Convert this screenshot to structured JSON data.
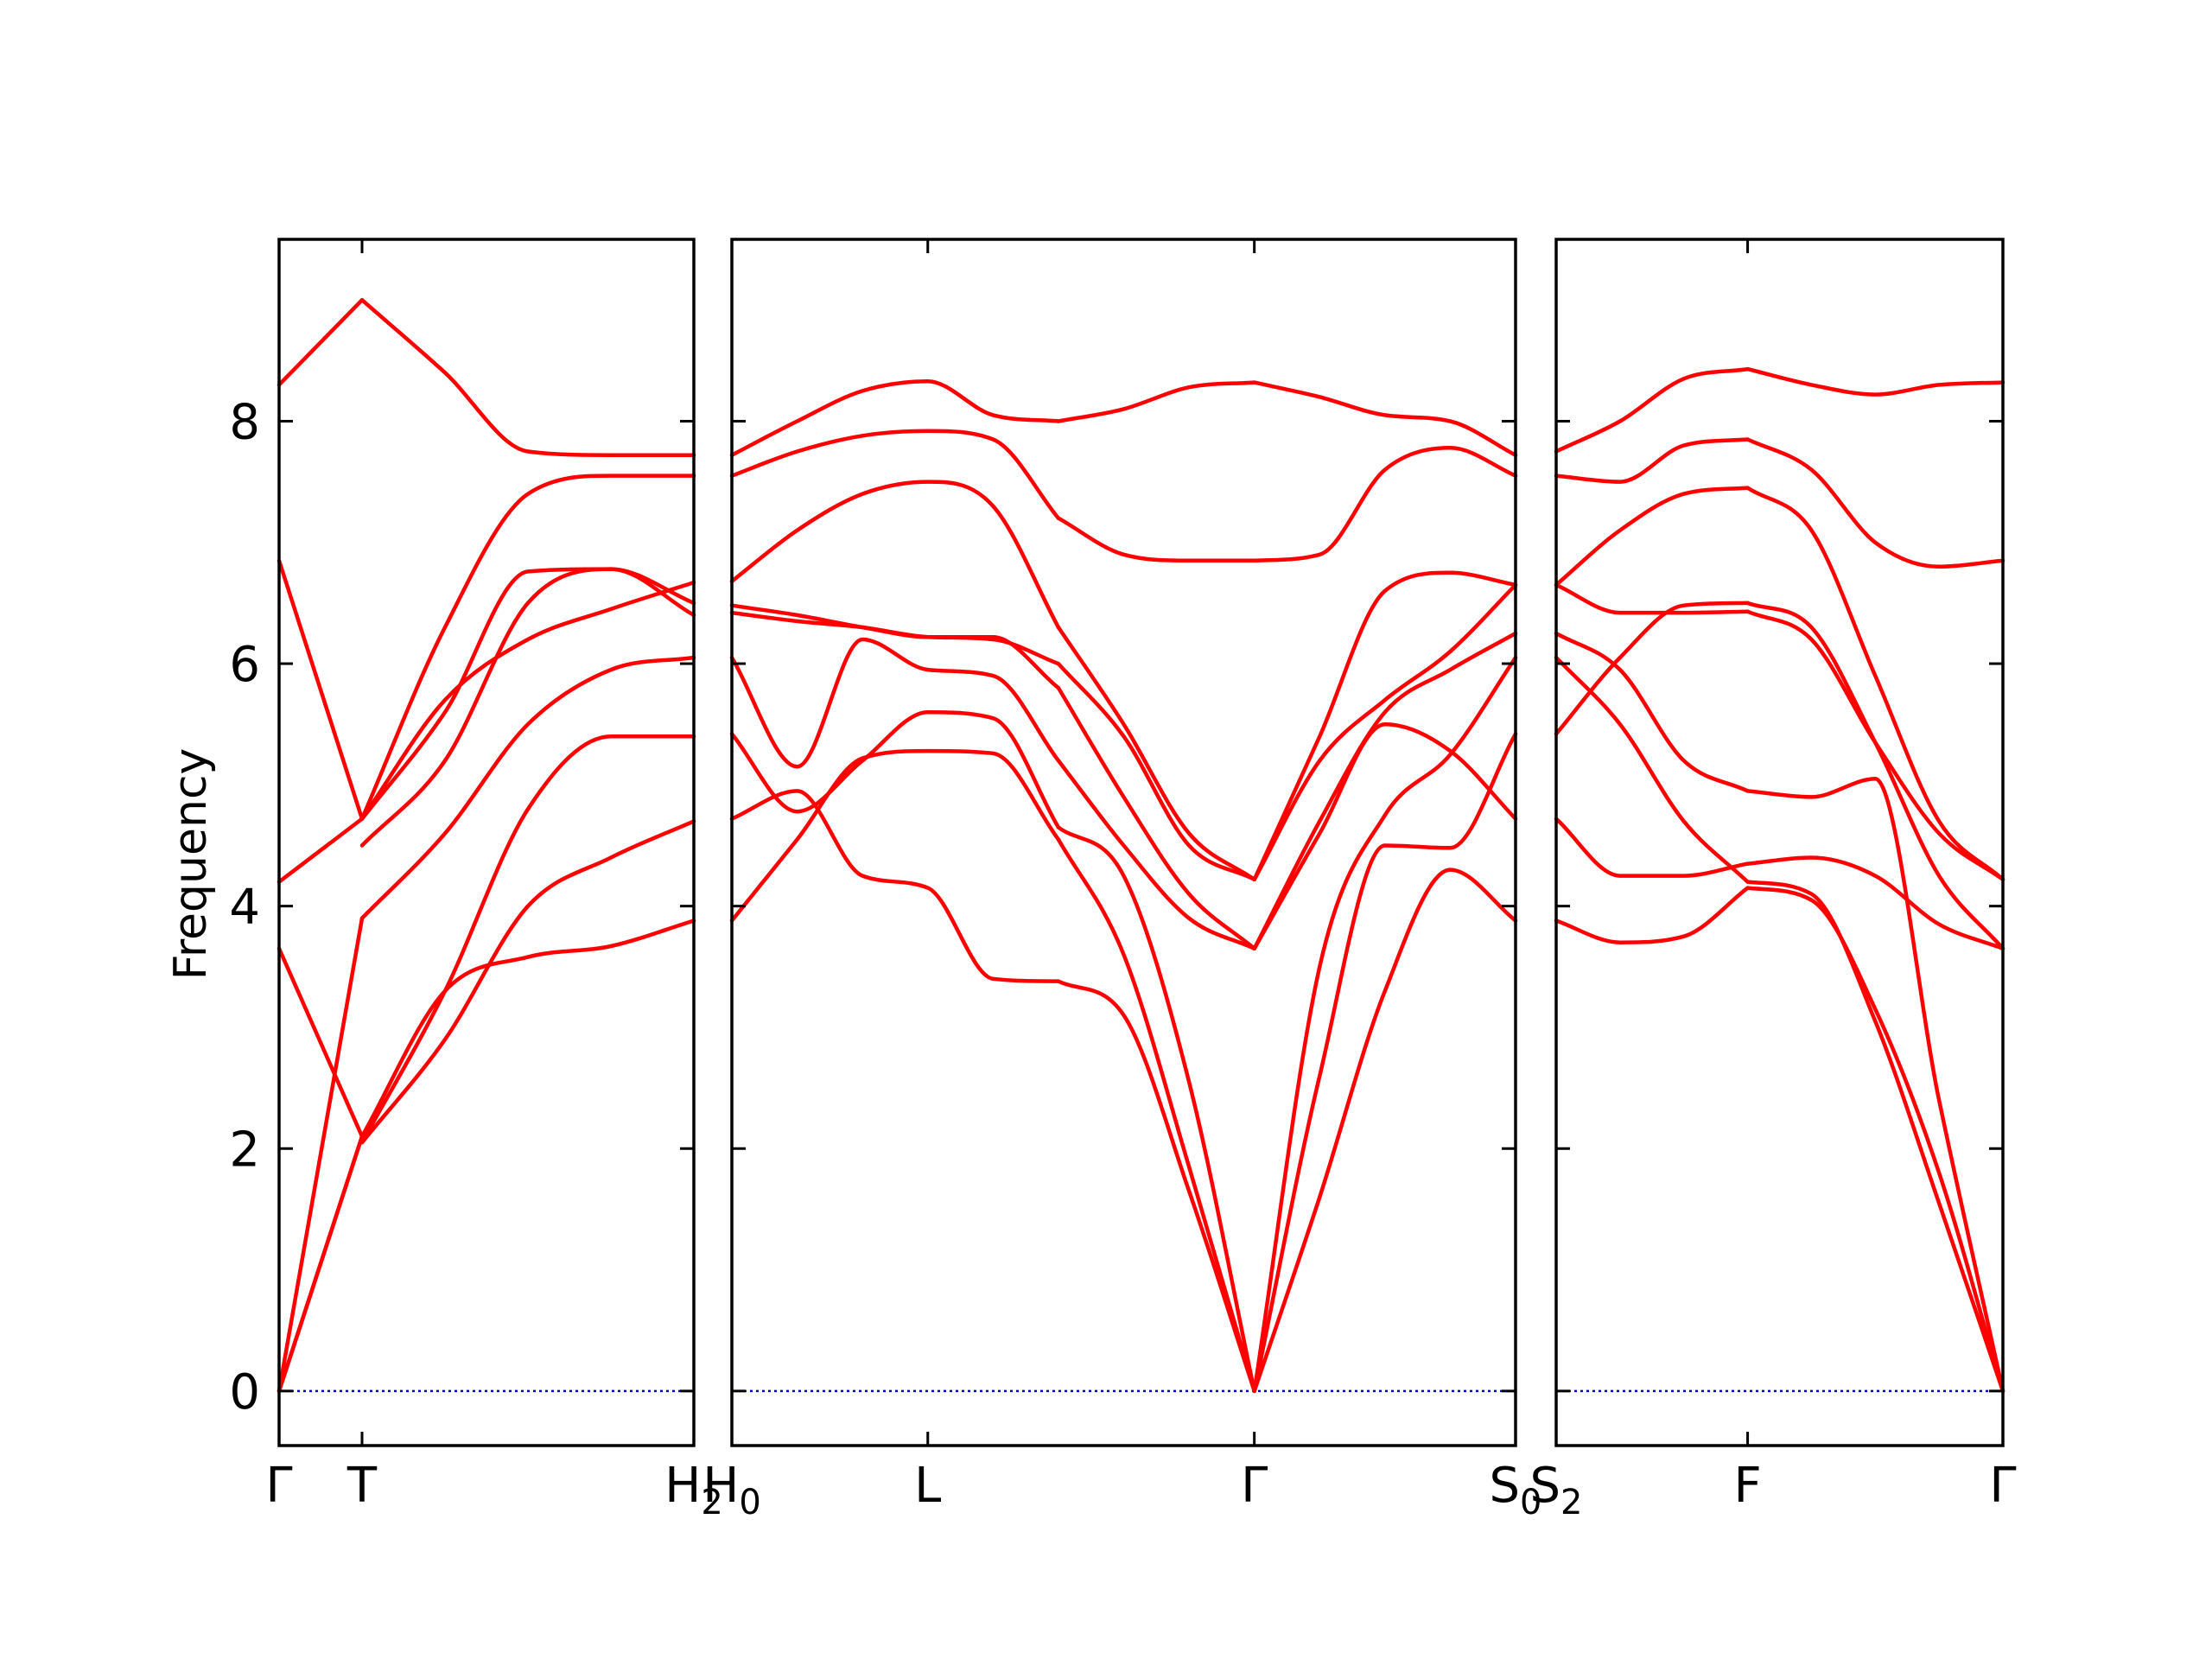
{
  "chart_data": {
    "type": "line",
    "title": "",
    "ylabel": "Frequency",
    "xlabel": "",
    "ylim": [
      -0.45,
      9.5
    ],
    "yticks": [
      "0",
      "2",
      "4",
      "6",
      "8"
    ],
    "grid": false,
    "legend": "none",
    "colors": {
      "bands": "#ff0000",
      "zero_line": "#0000cc",
      "axes": "#000000"
    },
    "panels": [
      {
        "segments": [
          {
            "x": [
              0,
              1
            ],
            "series": [
              {
                "values": [
                  0.0,
                  2.1
                ]
              },
              {
                "values": [
                  0.0,
                  2.1
                ]
              },
              {
                "values": [
                  0.0,
                  3.9
                ]
              },
              {
                "values": [
                  3.65,
                  2.1
                ]
              },
              {
                "values": [
                  4.2,
                  4.72
                ]
              },
              {
                "values": [
                  6.85,
                  4.72
                ]
              },
              {
                "values": [
                  8.3,
                  9.0
                ]
              }
            ]
          },
          {
            "x": [
              1,
              2,
              3,
              4,
              5
            ],
            "series": [
              {
                "values": [
                  2.05,
                  2.9,
                  4.0,
                  4.4,
                  4.7
                ]
              },
              {
                "values": [
                  2.05,
                  3.3,
                  4.8,
                  5.4,
                  5.4
                ]
              },
              {
                "values": [
                  2.1,
                  3.3,
                  3.58,
                  3.67,
                  3.88
                ]
              },
              {
                "values": [
                  3.9,
                  4.6,
                  5.5,
                  5.95,
                  6.05
                ]
              },
              {
                "values": [
                  4.5,
                  5.2,
                  6.5,
                  6.78,
                  6.4
                ]
              },
              {
                "values": [
                  4.72,
                  5.6,
                  6.76,
                  6.78,
                  6.5
                ]
              },
              {
                "values": [
                  4.72,
                  5.7,
                  6.2,
                  6.45,
                  6.67
                ]
              },
              {
                "values": [
                  9.0,
                  8.4,
                  7.75,
                  7.72,
                  7.72
                ]
              },
              {
                "values": [
                  4.72,
                  6.3,
                  7.4,
                  7.55,
                  7.55
                ]
              }
            ]
          }
        ],
        "ticks": [
          {
            "label": "Γ",
            "x": 0
          },
          {
            "label": "T",
            "x": 1
          },
          {
            "label": "H",
            "sub": "2",
            "x": 5
          }
        ]
      },
      {
        "segments": [
          {
            "x": [
              0,
              1,
              2,
              3,
              4,
              5
            ],
            "series": [
              {
                "values": [
                  3.88,
                  4.55,
                  5.22,
                  5.28,
                  5.26,
                  4.55
                ]
              },
              {
                "values": [
                  4.72,
                  4.95,
                  4.25,
                  4.15,
                  3.4,
                  3.38
                ]
              },
              {
                "values": [
                  5.42,
                  4.78,
                  5.2,
                  5.6,
                  5.55,
                  4.65
                ]
              },
              {
                "values": [
                  6.05,
                  5.15,
                  6.2,
                  5.95,
                  5.9,
                  5.2
                ]
              },
              {
                "values": [
                  6.48,
                  6.4,
                  6.3,
                  6.22,
                  6.22,
                  5.8
                ]
              },
              {
                "values": [
                  6.42,
                  6.35,
                  6.3,
                  6.22,
                  6.2,
                  6.0
                ]
              },
              {
                "values": [
                  6.68,
                  7.1,
                  7.4,
                  7.5,
                  7.3,
                  6.3
                ]
              },
              {
                "values": [
                  7.55,
                  7.75,
                  7.88,
                  7.92,
                  7.85,
                  7.2
                ]
              },
              {
                "values": [
                  7.72,
                  8.0,
                  8.25,
                  8.33,
                  8.05,
                  8.0
                ]
              }
            ]
          },
          {
            "x": [
              5,
              6,
              7,
              8
            ],
            "series": [
              {
                "values": [
                  4.55,
                  3.6,
                  1.85,
                  0.0
                ]
              },
              {
                "values": [
                  3.38,
                  3.1,
                  1.65,
                  0.0
                ]
              },
              {
                "values": [
                  4.65,
                  4.25,
                  2.55,
                  0.0
                ]
              },
              {
                "values": [
                  5.2,
                  4.5,
                  3.9,
                  3.65
                ]
              },
              {
                "values": [
                  5.8,
                  4.9,
                  4.1,
                  3.65
                ]
              },
              {
                "values": [
                  6.0,
                  5.4,
                  4.5,
                  4.22
                ]
              },
              {
                "values": [
                  6.3,
                  5.5,
                  4.6,
                  4.22
                ]
              },
              {
                "values": [
                  7.2,
                  6.9,
                  6.85,
                  6.85
                ]
              },
              {
                "values": [
                  8.0,
                  8.1,
                  8.28,
                  8.32
                ]
              }
            ]
          },
          {
            "x": [
              8,
              9,
              10,
              11,
              12
            ],
            "series": [
              {
                "values": [
                  0.0,
                  1.6,
                  3.3,
                  4.3,
                  3.88
                ]
              },
              {
                "values": [
                  0.0,
                  2.6,
                  4.5,
                  4.48,
                  5.42
                ]
              },
              {
                "values": [
                  0.0,
                  3.5,
                  4.75,
                  5.25,
                  6.05
                ]
              },
              {
                "values": [
                  3.65,
                  4.6,
                  5.5,
                  5.28,
                  4.72
                ]
              },
              {
                "values": [
                  3.65,
                  4.7,
                  5.6,
                  5.95,
                  6.25
                ]
              },
              {
                "values": [
                  4.22,
                  5.2,
                  5.7,
                  6.1,
                  6.65
                ]
              },
              {
                "values": [
                  4.22,
                  5.4,
                  6.6,
                  6.75,
                  6.65
                ]
              },
              {
                "values": [
                  6.85,
                  6.9,
                  7.6,
                  7.78,
                  7.55
                ]
              },
              {
                "values": [
                  8.32,
                  8.2,
                  8.05,
                  8.0,
                  7.72
                ]
              }
            ]
          }
        ],
        "ticks": [
          {
            "label": "H",
            "sub": "0",
            "x": 0
          },
          {
            "label": "L",
            "x": 3
          },
          {
            "label": "Γ",
            "x": 8
          },
          {
            "label": "S",
            "sub": "0",
            "x": 12
          }
        ]
      },
      {
        "segments": [
          {
            "x": [
              0,
              1,
              2,
              3
            ],
            "series": [
              {
                "values": [
                  3.88,
                  3.7,
                  3.75,
                  4.15
                ]
              },
              {
                "values": [
                  4.72,
                  4.25,
                  4.25,
                  4.35
                ]
              },
              {
                "values": [
                  5.42,
                  6.05,
                  6.48,
                  6.5
                ]
              },
              {
                "values": [
                  6.05,
                  5.5,
                  4.7,
                  4.2
                ]
              },
              {
                "values": [
                  6.25,
                  5.95,
                  5.2,
                  4.95
                ]
              },
              {
                "values": [
                  6.65,
                  6.42,
                  6.42,
                  6.43
                ]
              },
              {
                "values": [
                  6.65,
                  7.1,
                  7.4,
                  7.45
                ]
              },
              {
                "values": [
                  7.55,
                  7.5,
                  7.8,
                  7.85
                ]
              },
              {
                "values": [
                  7.75,
                  8.0,
                  8.35,
                  8.43
                ]
              }
            ]
          },
          {
            "x": [
              3,
              4,
              5,
              6,
              7
            ],
            "series": [
              {
                "values": [
                  4.15,
                  4.05,
                  3.15,
                  1.8,
                  0.0
                ]
              },
              {
                "values": [
                  4.2,
                  4.1,
                  3.05,
                  1.55,
                  0.0
                ]
              },
              {
                "values": [
                  4.95,
                  4.9,
                  5.05,
                  2.4,
                  0.0
                ]
              },
              {
                "values": [
                  4.35,
                  4.4,
                  4.25,
                  3.85,
                  3.65
                ]
              },
              {
                "values": [
                  6.5,
                  6.3,
                  5.35,
                  4.25,
                  3.65
                ]
              },
              {
                "values": [
                  6.43,
                  6.2,
                  5.35,
                  4.6,
                  4.22
                ]
              },
              {
                "values": [
                  7.45,
                  7.1,
                  5.9,
                  4.7,
                  4.22
                ]
              },
              {
                "values": [
                  7.85,
                  7.6,
                  7.0,
                  6.8,
                  6.85
                ]
              },
              {
                "values": [
                  8.43,
                  8.3,
                  8.22,
                  8.3,
                  8.32
                ]
              }
            ]
          }
        ],
        "ticks": [
          {
            "label": "S",
            "sub": "2",
            "x": 0
          },
          {
            "label": "F",
            "x": 3
          },
          {
            "label": "Γ",
            "x": 7
          }
        ]
      }
    ]
  }
}
